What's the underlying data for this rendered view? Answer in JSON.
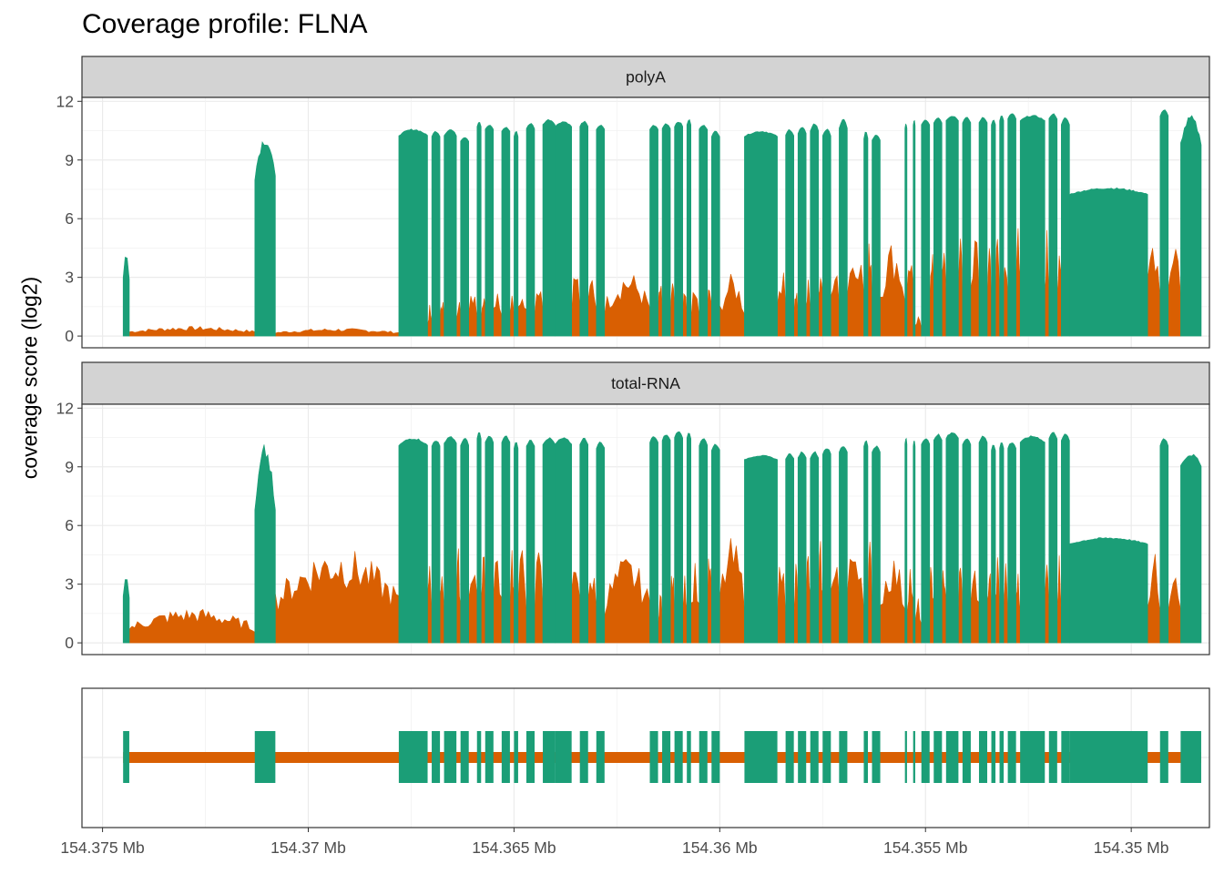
{
  "title": "Coverage profile: FLNA",
  "chart_data": {
    "type": "area",
    "title": "Coverage profile: FLNA",
    "ylabel": "coverage score (log2)",
    "xlabel": "",
    "x_unit": "Mb",
    "x_reversed": true,
    "xlim": [
      154.3755,
      154.3481
    ],
    "x_ticks": [
      {
        "value": 154.375,
        "label": "154.375 Mb"
      },
      {
        "value": 154.37,
        "label": "154.37 Mb"
      },
      {
        "value": 154.365,
        "label": "154.365 Mb"
      },
      {
        "value": 154.36,
        "label": "154.36 Mb"
      },
      {
        "value": 154.355,
        "label": "154.355 Mb"
      },
      {
        "value": 154.35,
        "label": "154.35 Mb"
      }
    ],
    "y_ticks": [
      0,
      3,
      6,
      9,
      12
    ],
    "ylim": [
      -0.6,
      12.2
    ],
    "grid": true,
    "colors": {
      "exon": "#1b9e77",
      "intron": "#d95f02",
      "strip": "#d3d3d3",
      "grid": "#ebebeb",
      "border": "#333333"
    },
    "exons_mb": [
      [
        154.3745,
        154.37435
      ],
      [
        154.3713,
        154.3708
      ],
      [
        154.3678,
        154.3671
      ],
      [
        154.367,
        154.3668
      ],
      [
        154.3667,
        154.3664
      ],
      [
        154.3663,
        154.3661
      ],
      [
        154.3659,
        154.3658
      ],
      [
        154.3657,
        154.3655
      ],
      [
        154.3653,
        154.3651
      ],
      [
        154.365,
        154.3649
      ],
      [
        154.3647,
        154.3645
      ],
      [
        154.3643,
        154.364
      ],
      [
        154.364,
        154.3636
      ],
      [
        154.3634,
        154.3632
      ],
      [
        154.363,
        154.3628
      ],
      [
        154.3617,
        154.3615
      ],
      [
        154.3614,
        154.3612
      ],
      [
        154.3611,
        154.3609
      ],
      [
        154.3608,
        154.3607
      ],
      [
        154.3605,
        154.3603
      ],
      [
        154.3602,
        154.36
      ],
      [
        154.3594,
        154.3586
      ],
      [
        154.3584,
        154.3582
      ],
      [
        154.3581,
        154.3579
      ],
      [
        154.3578,
        154.3576
      ],
      [
        154.3575,
        154.3573
      ],
      [
        154.3571,
        154.3569
      ],
      [
        154.3565,
        154.3564
      ],
      [
        154.3563,
        154.3561
      ],
      [
        154.3555,
        154.35545
      ],
      [
        154.3553,
        154.35525
      ],
      [
        154.3551,
        154.3549
      ],
      [
        154.3548,
        154.3546
      ],
      [
        154.3545,
        154.3542
      ],
      [
        154.3541,
        154.3539
      ],
      [
        154.3537,
        154.3535
      ],
      [
        154.3534,
        154.3533
      ],
      [
        154.3532,
        154.3531
      ],
      [
        154.353,
        154.3528
      ],
      [
        154.3527,
        154.3521
      ],
      [
        154.352,
        154.3518
      ],
      [
        154.3517,
        154.3515
      ],
      [
        154.3515,
        154.3496
      ],
      [
        154.3493,
        154.3491
      ],
      [
        154.3488,
        154.3483
      ]
    ],
    "panels": [
      {
        "name": "polyA",
        "exon_peaks": [
          4.3,
          10.3,
          10.6,
          10.5,
          10.6,
          10.2,
          11.0,
          10.8,
          10.7,
          10.5,
          10.9,
          11.1,
          11.0,
          11.0,
          10.8,
          10.8,
          10.9,
          11.0,
          11.1,
          10.8,
          10.5,
          10.5,
          10.6,
          10.7,
          10.9,
          10.6,
          11.1,
          10.5,
          10.3,
          10.9,
          11.1,
          11.1,
          11.2,
          11.3,
          11.2,
          11.2,
          11.1,
          11.3,
          11.4,
          11.3,
          11.4,
          11.2,
          7.6,
          11.6,
          11.3
        ],
        "exon_lows": [
          2.0,
          6.5,
          10.0,
          10.0,
          10.0,
          9.8,
          10.5,
          10.4,
          10.3,
          10.0,
          10.4,
          10.6,
          10.5,
          10.5,
          10.4,
          10.4,
          10.4,
          10.5,
          10.6,
          10.4,
          10.0,
          10.0,
          10.0,
          10.1,
          10.2,
          10.0,
          10.3,
          9.8,
          9.8,
          10.4,
          10.5,
          10.6,
          10.7,
          10.8,
          10.7,
          10.7,
          10.6,
          10.8,
          10.9,
          10.8,
          10.9,
          10.5,
          7.0,
          11.0,
          8.8
        ],
        "intron_levels": [
          0.5,
          0.4,
          1.6,
          2.2,
          2.3,
          2.5,
          2.8,
          2.8,
          2.9,
          3.0,
          3.4,
          3.7,
          3.8,
          3.4,
          3.4,
          3.0,
          3.1,
          2.5,
          2.6,
          3.0,
          3.2,
          3.8,
          3.0,
          3.0,
          4.2,
          4.6,
          5.3,
          5.7,
          5.0,
          5.0,
          1.0,
          5.5,
          6.0,
          5.5,
          5.6,
          5.6,
          5.6,
          5.6,
          5.7,
          5.7,
          5.8,
          5.7,
          5.8,
          5.8
        ],
        "intron_sub_levels": [
          0.5,
          0.4,
          1.6,
          2.2,
          2.3,
          2.5,
          2.8,
          2.8,
          2.9,
          3.0,
          3.4,
          3.7,
          3.8,
          3.4,
          3.4,
          3.0,
          3.1,
          2.5,
          2.6,
          3.0,
          3.2,
          3.8,
          3.0,
          3.0,
          4.2,
          4.6,
          5.3,
          5.7,
          5.0,
          5.0,
          1.0,
          5.5,
          6.0,
          5.5,
          5.6,
          5.6,
          5.6,
          5.6,
          5.7,
          5.7,
          5.8,
          5.7,
          5.8,
          5.8
        ]
      },
      {
        "name": "total-RNA",
        "exon_peaks": [
          3.5,
          10.2,
          10.5,
          10.4,
          10.6,
          10.5,
          10.8,
          10.6,
          10.6,
          10.3,
          10.4,
          10.5,
          10.5,
          10.5,
          10.3,
          10.6,
          10.7,
          10.9,
          10.8,
          10.5,
          10.2,
          9.6,
          9.7,
          9.8,
          9.8,
          10.0,
          10.1,
          10.4,
          10.1,
          10.5,
          10.4,
          10.5,
          10.7,
          10.8,
          10.5,
          10.6,
          10.2,
          10.3,
          10.3,
          10.6,
          10.8,
          10.7,
          5.4,
          10.5,
          9.7
        ],
        "exon_lows": [
          1.5,
          4.0,
          9.8,
          9.8,
          9.9,
          9.8,
          10.2,
          10.0,
          10.0,
          9.7,
          9.8,
          9.9,
          9.9,
          9.9,
          9.7,
          10.0,
          10.1,
          10.2,
          10.2,
          9.8,
          9.6,
          9.2,
          9.2,
          9.2,
          9.2,
          9.4,
          9.5,
          9.8,
          9.5,
          9.9,
          9.8,
          9.9,
          10.1,
          10.2,
          9.9,
          10.0,
          9.6,
          9.7,
          9.7,
          10.0,
          10.2,
          10.1,
          4.8,
          9.8,
          8.6
        ],
        "intron_levels": [
          1.8,
          5.0,
          5.0,
          4.8,
          4.9,
          5.2,
          5.2,
          5.1,
          5.5,
          5.0,
          4.9,
          5.4,
          5.5,
          4.3,
          4.5,
          3.0,
          4.0,
          4.4,
          4.3,
          5.0,
          5.4,
          4.6,
          4.5,
          5.0,
          5.3,
          5.5,
          5.8,
          5.4,
          4.6,
          4.4,
          2.3,
          4.5,
          4.8,
          4.4,
          4.2,
          4.5,
          4.5,
          4.4,
          4.6,
          4.6,
          4.8,
          4.8,
          4.7,
          4.9
        ],
        "intron_sub_levels": [
          1.8,
          5.0,
          5.0,
          4.8,
          4.9,
          5.2,
          5.2,
          5.1,
          5.5,
          5.0,
          4.9,
          5.4,
          5.5,
          4.3,
          4.5,
          3.0,
          4.0,
          4.4,
          4.3,
          5.0,
          5.4,
          4.6,
          4.5,
          5.0,
          5.3,
          5.5,
          5.8,
          5.4,
          4.6,
          4.4,
          2.3,
          4.5,
          4.8,
          4.4,
          4.2,
          4.5,
          4.5,
          4.4,
          4.6,
          4.6,
          4.8,
          4.8,
          4.7,
          4.9
        ]
      }
    ]
  }
}
